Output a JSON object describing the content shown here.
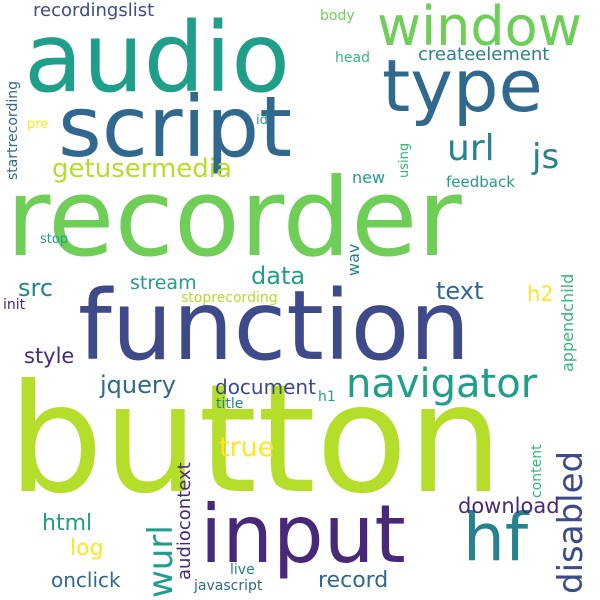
{
  "words": {
    "button": "button",
    "recorder": "recorder",
    "function": "function",
    "audio": "audio",
    "script": "script",
    "input": "input",
    "type": "type",
    "window": "window",
    "navigator": "navigator",
    "hf": "hf",
    "url": "url",
    "js": "js",
    "getusermedia": "getusermedia",
    "wurl": "wurl",
    "disabled": "disabled",
    "data": "data",
    "text": "text",
    "jquery": "jquery",
    "document": "document",
    "true": "true",
    "src": "src",
    "stream": "stream",
    "style": "style",
    "html": "html",
    "log": "log",
    "onclick": "onclick",
    "record": "record",
    "download": "download",
    "audiocontext": "audiocontext",
    "recordingslist": "recordingslist",
    "createelement": "createelement",
    "startrecording": "startrecording",
    "appendchild": "appendchild",
    "h2": "h2",
    "wav": "wav",
    "new": "new",
    "body": "body",
    "head": "head",
    "pre": "pre",
    "id": "id",
    "using": "using",
    "feedback": "feedback",
    "stop": "stop",
    "init": "init",
    "stoprecording": "stoprecording",
    "h1": "h1",
    "title": "title",
    "content": "content",
    "live": "live",
    "javascript": "javascript"
  },
  "colors": {
    "lime": "#b5de2b",
    "green": "#6ece58",
    "teal": "#1f9e89",
    "tealLight": "#35b779",
    "blue": "#31688e",
    "navy": "#3e4a89",
    "slate": "#26828e",
    "indigo": "#482878",
    "yellow": "#fde725"
  }
}
